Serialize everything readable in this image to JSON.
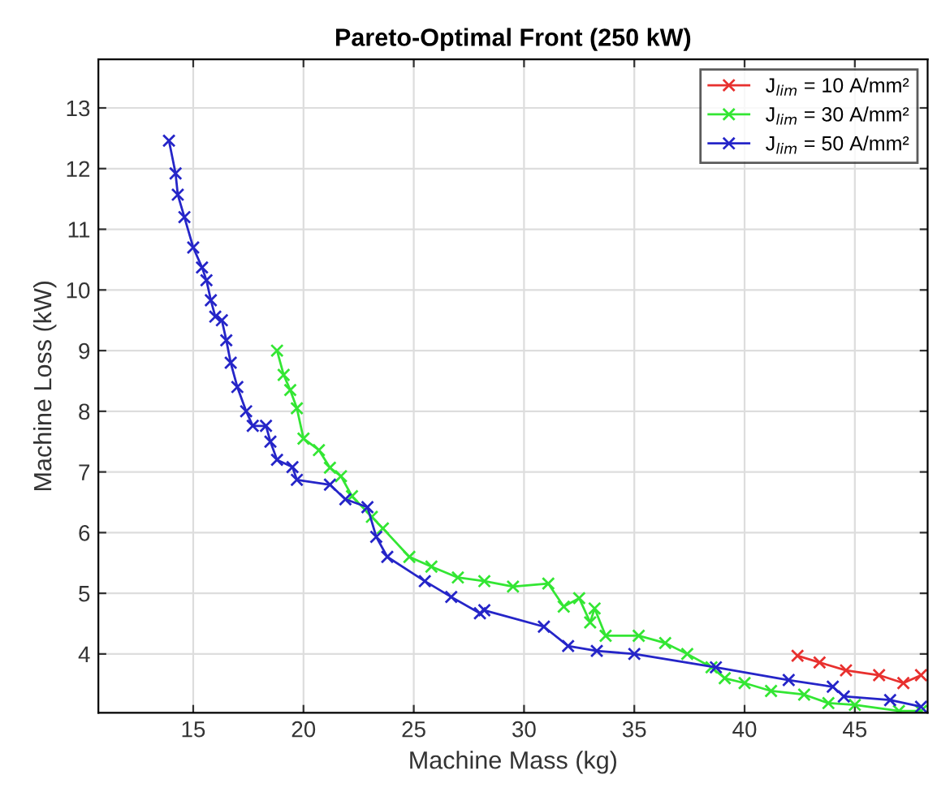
{
  "chart_data": {
    "type": "line",
    "title": "Pareto-Optimal Front (250 kW)",
    "xlabel": "Machine Mass (kg)",
    "ylabel": "Machine Loss (kW)",
    "xlim": [
      10.7,
      48.3
    ],
    "ylim": [
      3.03,
      13.8
    ],
    "xticks": [
      15,
      20,
      25,
      30,
      35,
      40,
      45
    ],
    "yticks": [
      4,
      5,
      6,
      7,
      8,
      9,
      10,
      11,
      12,
      13
    ],
    "grid": true,
    "legend": "top right",
    "marker": "cross",
    "line_style": "solid",
    "series": [
      {
        "name": "J$_{lim}$ = 10 A/mm²",
        "color": "#e8302e",
        "x": [
          42.4,
          43.4,
          44.6,
          46.1,
          47.2,
          48.0
        ],
        "values": [
          3.97,
          3.86,
          3.73,
          3.65,
          3.52,
          3.65
        ]
      },
      {
        "name": "J$_{lim}$ = 30 A/mm²",
        "color": "#33e633",
        "x": [
          18.8,
          19.1,
          19.4,
          19.7,
          20.0,
          20.7,
          21.2,
          21.7,
          22.2,
          23.1,
          23.6,
          24.8,
          25.8,
          27.0,
          28.2,
          29.5,
          31.1,
          31.8,
          32.5,
          33.0,
          33.2,
          33.7,
          35.2,
          36.4,
          37.4,
          38.5,
          39.1,
          40.0,
          41.2,
          42.7,
          43.8,
          45.0,
          47.0,
          48.0
        ],
        "values": [
          9.0,
          8.6,
          8.35,
          8.05,
          7.55,
          7.36,
          7.07,
          6.93,
          6.6,
          6.26,
          6.07,
          5.6,
          5.44,
          5.26,
          5.2,
          5.11,
          5.16,
          4.78,
          4.92,
          4.52,
          4.75,
          4.3,
          4.3,
          4.18,
          4.0,
          3.78,
          3.6,
          3.52,
          3.39,
          3.33,
          3.19,
          3.16,
          3.06,
          3.06
        ]
      },
      {
        "name": "J$_{lim}$ = 50 A/mm²",
        "color": "#2525c8",
        "x": [
          13.9,
          14.2,
          14.3,
          14.6,
          15.0,
          15.4,
          15.6,
          15.8,
          16.0,
          16.3,
          16.5,
          16.7,
          17.0,
          17.4,
          17.7,
          18.3,
          18.5,
          18.8,
          19.5,
          19.7,
          21.2,
          21.9,
          22.9,
          23.3,
          23.8,
          25.5,
          26.7,
          28.0,
          28.2,
          30.9,
          32.0,
          33.3,
          35.0,
          38.7,
          42.0,
          44.0,
          44.5,
          46.6,
          48.0
        ],
        "values": [
          12.46,
          11.92,
          11.57,
          11.2,
          10.7,
          10.37,
          10.16,
          9.83,
          9.56,
          9.5,
          9.17,
          8.8,
          8.4,
          8.0,
          7.76,
          7.76,
          7.5,
          7.2,
          7.08,
          6.87,
          6.79,
          6.55,
          6.42,
          5.93,
          5.6,
          5.2,
          4.94,
          4.67,
          4.72,
          4.45,
          4.13,
          4.05,
          4.0,
          3.78,
          3.57,
          3.46,
          3.3,
          3.24,
          3.13
        ]
      }
    ]
  }
}
